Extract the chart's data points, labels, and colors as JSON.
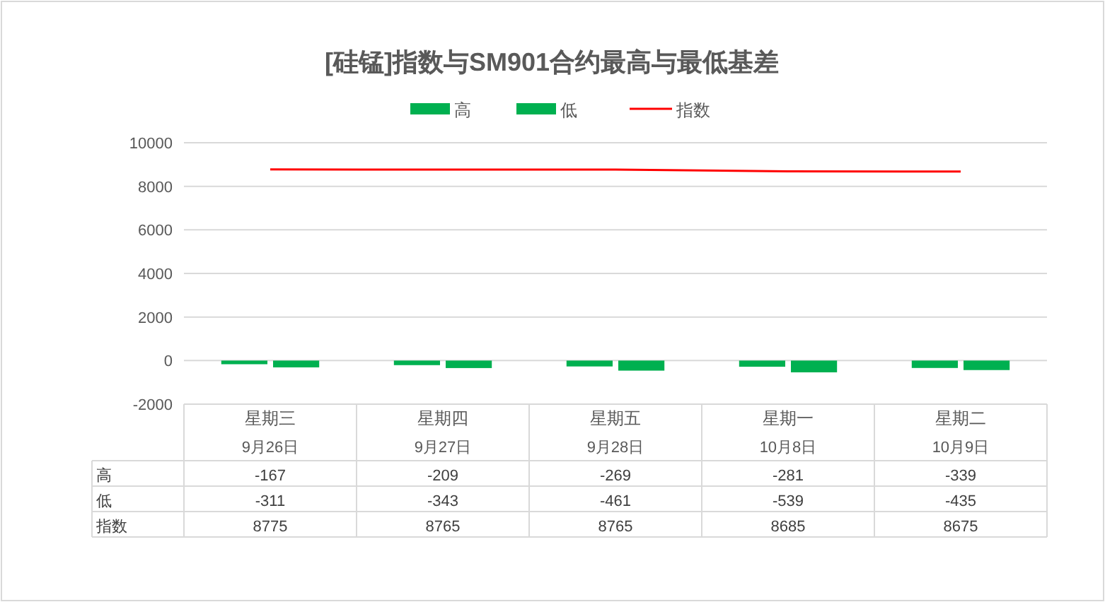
{
  "chart_data": {
    "type": "bar",
    "title": "[硅锰]指数与SM901合约最高与最低基差",
    "categories": [
      "星期三\n9月26日",
      "星期四\n9月27日",
      "星期五\n9月28日",
      "星期一\n10月8日",
      "星期二\n10月9日"
    ],
    "series": [
      {
        "name": "高",
        "color": "#00b050",
        "values": [
          -167,
          -209,
          -269,
          -281,
          -339
        ]
      },
      {
        "name": "低",
        "color": "#00b050",
        "values": [
          -311,
          -343,
          -461,
          -539,
          -435
        ]
      },
      {
        "name": "指数",
        "type": "line",
        "color": "#ff0000",
        "values": [
          8775,
          8765,
          8765,
          8685,
          8675
        ]
      }
    ],
    "ylim": [
      -2000,
      10000
    ],
    "yticks": [
      -2000,
      0,
      2000,
      4000,
      6000,
      8000,
      10000
    ],
    "grid": "y",
    "legend": "top",
    "data_labels": true
  }
}
